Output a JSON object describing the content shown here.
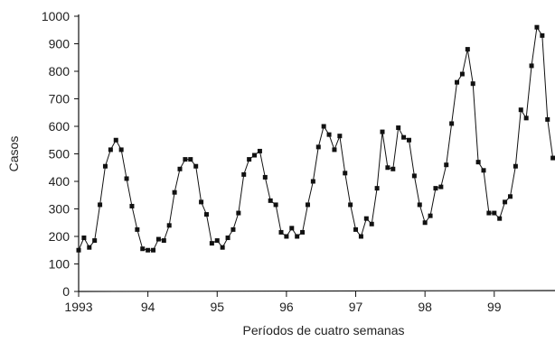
{
  "chart_data": {
    "type": "line",
    "xlabel": "Períodos de cuatro semanas",
    "ylabel": "Casos",
    "ylim": [
      0,
      1000
    ],
    "yticks": [
      0,
      100,
      200,
      300,
      400,
      500,
      600,
      700,
      800,
      900,
      1000
    ],
    "xticks": [
      {
        "period": 0,
        "label": "1993"
      },
      {
        "period": 13,
        "label": "94"
      },
      {
        "period": 26,
        "label": "95"
      },
      {
        "period": 39,
        "label": "96"
      },
      {
        "period": 52,
        "label": "97"
      },
      {
        "period": 65,
        "label": "98"
      },
      {
        "period": 78,
        "label": "99"
      }
    ],
    "grid": false,
    "marker": "square",
    "series": [
      {
        "values": [
          150,
          195,
          160,
          185,
          315,
          455,
          515,
          550,
          515,
          410,
          310,
          225,
          155,
          150,
          150,
          190,
          185,
          240,
          360,
          445,
          480,
          480,
          455,
          325,
          280,
          175,
          185,
          160,
          195,
          225,
          285,
          425,
          480,
          495,
          510,
          415,
          330,
          315,
          215,
          200,
          230,
          200,
          215,
          315,
          400,
          525,
          600,
          570,
          515,
          565,
          430,
          315,
          225,
          200,
          265,
          245,
          375,
          580,
          450,
          445,
          595,
          560,
          550,
          420,
          315,
          250,
          275,
          375,
          380,
          460,
          610,
          760,
          790,
          880,
          755,
          470,
          440,
          285,
          285,
          265,
          325,
          345,
          455,
          660,
          630,
          820,
          960,
          930,
          625,
          485
        ]
      }
    ]
  }
}
